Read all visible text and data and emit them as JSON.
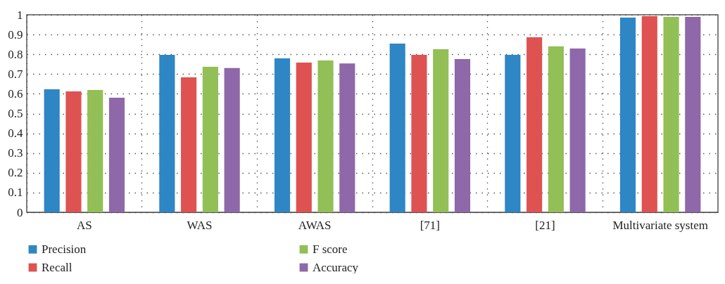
{
  "chart_data": {
    "type": "bar",
    "categories": [
      "AS",
      "WAS",
      "AWAS",
      "[71]",
      "[21]",
      "Multivariate system"
    ],
    "series": [
      {
        "name": "Precision",
        "color": "#2e86c4",
        "values": [
          0.623,
          0.797,
          0.779,
          0.854,
          0.797,
          0.986
        ]
      },
      {
        "name": "Recall",
        "color": "#de5352",
        "values": [
          0.612,
          0.683,
          0.758,
          0.797,
          0.886,
          0.993
        ]
      },
      {
        "name": "F score",
        "color": "#92bf56",
        "values": [
          0.619,
          0.737,
          0.769,
          0.826,
          0.84,
          0.989
        ]
      },
      {
        "name": "Accuracy",
        "color": "#8e68a8",
        "values": [
          0.58,
          0.73,
          0.754,
          0.776,
          0.829,
          0.989
        ]
      }
    ],
    "ylim": [
      0,
      1
    ],
    "yticks": [
      0,
      0.1,
      0.2,
      0.3,
      0.4,
      0.5,
      0.6,
      0.7,
      0.8,
      0.9,
      1
    ],
    "grid": true,
    "legend": "bottom"
  }
}
